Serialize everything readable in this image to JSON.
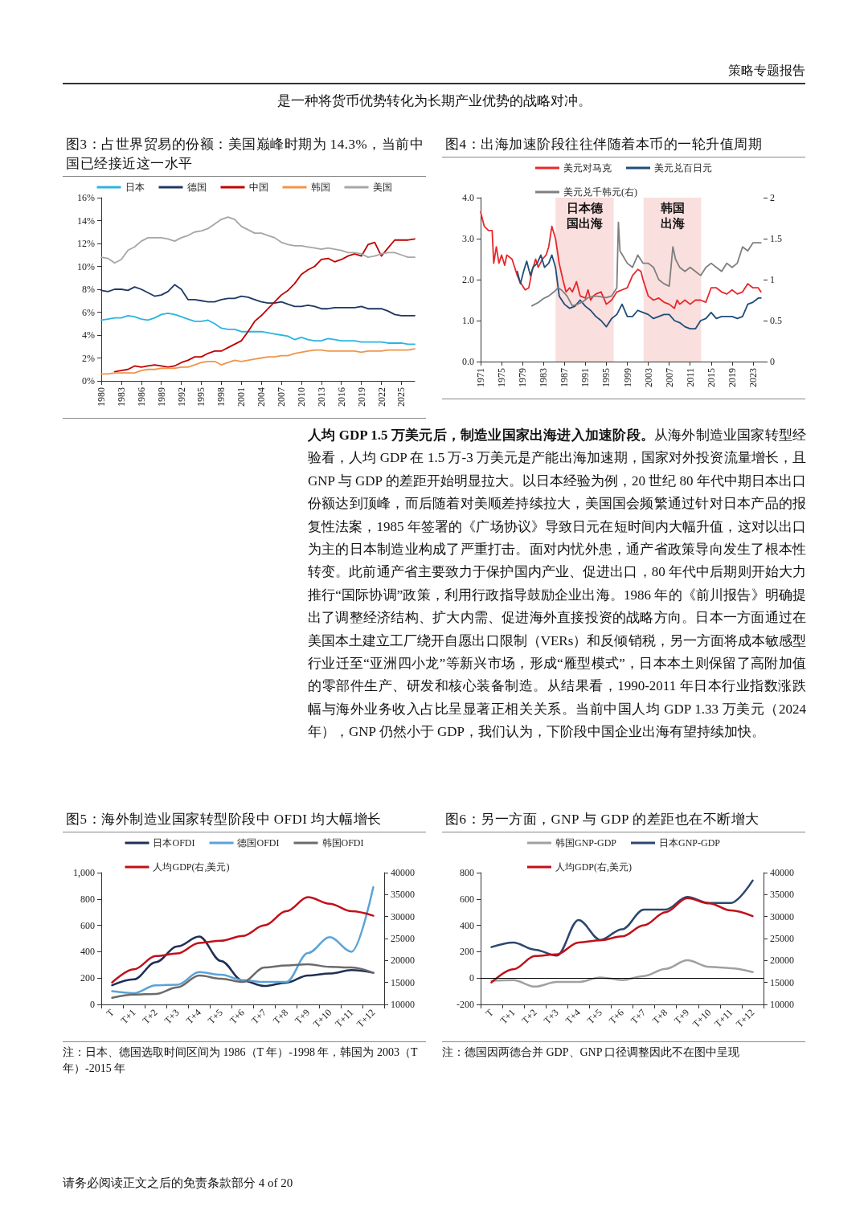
{
  "chart_data": [
    {
      "type": "line",
      "title": "图3：占世界贸易的份额：美国巅峰时期为 14.3%，当前中国已经接近这一水平",
      "x": [
        1980,
        1981,
        1982,
        1983,
        1984,
        1985,
        1986,
        1987,
        1988,
        1989,
        1990,
        1991,
        1992,
        1993,
        1994,
        1995,
        1996,
        1997,
        1998,
        1999,
        2000,
        2001,
        2002,
        2003,
        2004,
        2005,
        2006,
        2007,
        2008,
        2009,
        2010,
        2011,
        2012,
        2013,
        2014,
        2015,
        2016,
        2017,
        2018,
        2019,
        2020,
        2021,
        2022,
        2023,
        2024,
        2025,
        2026,
        2027
      ],
      "xlim": [
        1980,
        2027
      ],
      "xticks": [
        1980,
        1983,
        1986,
        1989,
        1992,
        1995,
        1998,
        2001,
        2004,
        2007,
        2010,
        2013,
        2016,
        2019,
        2022,
        2025
      ],
      "ylim": [
        0,
        16
      ],
      "yticks": [
        {
          "value": 0,
          "label": "0%"
        },
        {
          "value": 2,
          "label": "2%"
        },
        {
          "value": 4,
          "label": "4%"
        },
        {
          "value": 6,
          "label": "6%"
        },
        {
          "value": 8,
          "label": "8%"
        },
        {
          "value": 10,
          "label": "10%"
        },
        {
          "value": 12,
          "label": "12%"
        },
        {
          "value": 14,
          "label": "14%"
        },
        {
          "value": 16,
          "label": "16%"
        }
      ],
      "legend": "top",
      "annotations": [
        "策略专题报告",
        "是一种将货币优势转化为长期产业优势的战略对冲。"
      ],
      "series": [
        {
          "name": "日本",
          "color": "#2bb5e0",
          "values": [
            5.3,
            5.4,
            5.5,
            5.5,
            5.7,
            5.6,
            5.4,
            5.3,
            5.5,
            5.8,
            5.9,
            5.8,
            5.6,
            5.4,
            5.2,
            5.2,
            5.3,
            5.0,
            4.6,
            4.5,
            4.5,
            4.3,
            4.3,
            4.3,
            4.3,
            4.2,
            4.1,
            4.0,
            3.9,
            3.6,
            3.8,
            3.6,
            3.5,
            3.5,
            3.7,
            3.6,
            3.5,
            3.5,
            3.5,
            3.4,
            3.4,
            3.4,
            3.4,
            3.3,
            3.3,
            3.3,
            3.2,
            3.2
          ]
        },
        {
          "name": "德国",
          "color": "#1f3864",
          "values": [
            7.9,
            7.8,
            8.0,
            8.0,
            7.9,
            8.2,
            8.0,
            7.7,
            7.4,
            7.5,
            7.8,
            8.4,
            8.0,
            7.1,
            7.1,
            7.0,
            6.9,
            6.9,
            7.1,
            7.2,
            7.2,
            7.4,
            7.3,
            7.1,
            6.9,
            6.8,
            6.8,
            6.9,
            6.7,
            6.5,
            6.5,
            6.6,
            6.5,
            6.3,
            6.3,
            6.4,
            6.4,
            6.4,
            6.4,
            6.5,
            6.3,
            6.3,
            6.3,
            6.1,
            5.8,
            5.7,
            5.7,
            5.7
          ]
        },
        {
          "name": "中国",
          "color": "#c00000",
          "values": [
            null,
            null,
            0.8,
            0.9,
            1.0,
            1.3,
            1.2,
            1.3,
            1.4,
            1.3,
            1.2,
            1.3,
            1.6,
            1.8,
            2.1,
            2.1,
            2.4,
            2.6,
            2.6,
            2.9,
            3.2,
            3.5,
            4.3,
            5.2,
            5.7,
            6.3,
            6.9,
            7.5,
            7.9,
            8.5,
            9.3,
            9.7,
            10.0,
            10.6,
            10.7,
            10.4,
            10.6,
            10.9,
            11.1,
            10.9,
            11.9,
            12.1,
            10.9,
            11.6,
            12.3,
            12.3,
            12.3,
            12.4
          ]
        },
        {
          "name": "韩国",
          "color": "#f0954a",
          "values": [
            0.6,
            0.6,
            0.7,
            0.7,
            0.7,
            0.7,
            0.9,
            1.0,
            1.0,
            1.1,
            1.1,
            1.1,
            1.2,
            1.2,
            1.4,
            1.6,
            1.7,
            1.7,
            1.4,
            1.6,
            1.8,
            1.7,
            1.8,
            1.9,
            2.0,
            2.1,
            2.1,
            2.2,
            2.2,
            2.4,
            2.5,
            2.6,
            2.7,
            2.7,
            2.6,
            2.6,
            2.6,
            2.6,
            2.6,
            2.5,
            2.6,
            2.6,
            2.6,
            2.7,
            2.7,
            2.7,
            2.7,
            2.8
          ]
        },
        {
          "name": "美国",
          "color": "#a6a6a6",
          "values": [
            10.8,
            10.7,
            10.3,
            10.6,
            11.4,
            11.7,
            12.2,
            12.5,
            12.5,
            12.5,
            12.4,
            12.2,
            12.5,
            12.7,
            13.0,
            13.1,
            13.3,
            13.7,
            14.1,
            14.3,
            14.1,
            13.5,
            13.2,
            12.9,
            12.9,
            12.7,
            12.5,
            12.1,
            11.9,
            11.8,
            11.8,
            11.7,
            11.6,
            11.5,
            11.6,
            11.5,
            11.4,
            11.2,
            11.2,
            11.1,
            10.8,
            10.9,
            11.1,
            11.2,
            11.2,
            11.0,
            10.8,
            10.8
          ]
        }
      ]
    },
    {
      "type": "line",
      "title": "图4：出海加速阶段往往伴随着本币的一轮升值周期",
      "xlim": [
        1971,
        2025
      ],
      "xticks": [
        1971,
        1975,
        1979,
        1983,
        1987,
        1991,
        1995,
        1999,
        2003,
        2007,
        2011,
        2015,
        2019,
        2023
      ],
      "ylim": [
        0,
        4
      ],
      "yticks": [
        {
          "value": 0,
          "label": "0.0"
        },
        {
          "value": 1,
          "label": "1.0"
        },
        {
          "value": 2,
          "label": "2.0"
        },
        {
          "value": 3,
          "label": "3.0"
        },
        {
          "value": 4,
          "label": "4.0"
        }
      ],
      "y2lim": [
        0,
        2
      ],
      "y2ticks": [
        0,
        0.5,
        1,
        1.5,
        2
      ],
      "legend": "top",
      "bands": [
        {
          "axis": "x",
          "from": 1985.3,
          "to": 1996.4,
          "label": "日本德国出海",
          "color": "#f9dcdc"
        },
        {
          "axis": "x",
          "from": 2002.1,
          "to": 2013.1,
          "label": "韩国出海",
          "color": "#f9dcdc"
        }
      ],
      "annotations": [
        "人均 GDP 1.5 万美元后，制造业国家出海进入加速阶段。",
        "从海外制造业国家转型经验看，人均 GDP 在 1.5 万-3 万美元是产能出海加速期，国家对外投资流量增长，且 GNP 与 GDP 的差距开始明显拉大。以日本经验为例，20 世纪 80 年代中期日本出口份额达到顶峰，而后随着对美顺差持续拉大，美国国会频繁通过针对日本产品的报复性法案，1985 年签署的《广场协议》导致日元在短时间内大幅升值，这对以出口为主的日本制造业构成了严重打击。面对内忧外患，通产省政策导向发生了根本性转变。此前通产省主要致力于保护国内产业、促进出口，80 年代中后期则开始大力推行“国际协调”政策，利用行政指导鼓励企业出海。1986 年的《前川报告》明确提出了调整经济结构、扩大内需、促进海外直接投资的战略方向。日本一方面通过在美国本土建立工厂绕开自愿出口限制（VERs）和反倾销税，另一方面将成本敏感型行业迁至“亚洲四小龙”等新兴市场，形成“雁型模式”，日本本土则保留了高附加值的零部件生产、研发和核心装备制造。从结果看，1990-2011 年日本行业指数涨跌幅与海外业务收入占比呈显著正相关关系。当前中国人均 GDP 1.33 万美元（2024 年），GNP 仍然小于 GDP，我们认为，下阶段中国企业出海有望持续加快。"
      ],
      "series": [
        {
          "name": "美元对马克",
          "color": "#e8282b",
          "x": [
            1971,
            1971.7,
            1972.5,
            1973.2,
            1973.5,
            1974,
            1974.5,
            1975,
            1975.6,
            1976,
            1977,
            1978,
            1978.5,
            1979.5,
            1980.2,
            1980.8,
            1981.5,
            1982,
            1982.8,
            1983.5,
            1984,
            1984.6,
            1985.3,
            1986,
            1986.7,
            1987.3,
            1988,
            1988.5,
            1989.3,
            1990,
            1991,
            1991.5,
            1992,
            1992.5,
            1993,
            1994,
            1995,
            1996,
            1997,
            1998,
            1999,
            2000,
            2001,
            2001.6,
            2002,
            2003,
            2004,
            2005,
            2006,
            2007,
            2008,
            2008.5,
            2009,
            2010,
            2011,
            2012,
            2013,
            2014,
            2015,
            2016,
            2017,
            2018,
            2019,
            2020,
            2021,
            2022,
            2023,
            2024,
            2024.5
          ],
          "values": [
            3.65,
            3.3,
            3.2,
            3.2,
            2.4,
            2.8,
            2.4,
            2.6,
            2.35,
            2.6,
            2.5,
            2.1,
            1.95,
            1.75,
            1.8,
            2.2,
            2.5,
            2.3,
            2.5,
            2.6,
            2.8,
            3.3,
            3.0,
            2.4,
            2.0,
            1.7,
            1.8,
            1.7,
            1.95,
            1.6,
            1.55,
            1.75,
            1.5,
            1.6,
            1.65,
            1.7,
            1.4,
            1.5,
            1.7,
            1.75,
            1.8,
            2.1,
            2.25,
            2.2,
            2.0,
            1.6,
            1.5,
            1.55,
            1.45,
            1.4,
            1.3,
            1.5,
            1.4,
            1.5,
            1.4,
            1.5,
            1.5,
            1.45,
            1.8,
            1.8,
            1.7,
            1.65,
            1.75,
            1.65,
            1.7,
            1.9,
            1.8,
            1.8,
            1.7
          ]
        },
        {
          "name": "美元兑百日元",
          "color": "#1f4e79",
          "x": [
            1978,
            1978.6,
            1979.2,
            1979.8,
            1980.5,
            1981,
            1981.8,
            1982.5,
            1983.2,
            1984,
            1984.6,
            1985.3,
            1986,
            1987,
            1988,
            1989,
            1990,
            1991,
            1992,
            1993,
            1994,
            1995,
            1996,
            1997,
            1998,
            1999,
            2000,
            2001,
            2002,
            2003,
            2004,
            2005,
            2006,
            2007,
            2008,
            2009,
            2010,
            2011,
            2012,
            2013,
            2014,
            2015,
            2016,
            2017,
            2018,
            2019,
            2020,
            2021,
            2022,
            2023,
            2024,
            2024.5
          ],
          "values": [
            2.2,
            1.9,
            2.2,
            2.45,
            2.1,
            2.3,
            2.4,
            2.6,
            2.3,
            2.4,
            2.6,
            2.3,
            1.6,
            1.4,
            1.3,
            1.35,
            1.5,
            1.35,
            1.25,
            1.1,
            1.0,
            0.85,
            1.05,
            1.15,
            1.4,
            1.1,
            1.1,
            1.25,
            1.2,
            1.15,
            1.05,
            1.1,
            1.15,
            1.15,
            1.0,
            0.95,
            0.85,
            0.8,
            0.8,
            1.0,
            1.05,
            1.2,
            1.05,
            1.1,
            1.1,
            1.1,
            1.05,
            1.1,
            1.4,
            1.45,
            1.55,
            1.55
          ]
        },
        {
          "name": "美元兑千韩元(右)",
          "color": "#7f7f7f",
          "axis": "y2",
          "x": [
            1980.8,
            1982,
            1983,
            1984,
            1985,
            1985.8,
            1986.5,
            1987.5,
            1988.5,
            1989.5,
            1990.5,
            1991.5,
            1993,
            1995,
            1996,
            1997,
            1997.3,
            1997.6,
            1999,
            2000,
            2001,
            2002,
            2003,
            2004,
            2005,
            2006,
            2007,
            2007.7,
            2008.2,
            2009,
            2010,
            2011,
            2012,
            2013,
            2014,
            2015,
            2016,
            2017,
            2018,
            2019,
            2020,
            2021,
            2022,
            2023,
            2024,
            2024.5
          ],
          "values": [
            0.68,
            0.72,
            0.77,
            0.8,
            0.85,
            0.9,
            0.87,
            0.8,
            0.68,
            0.7,
            0.73,
            0.78,
            0.8,
            0.78,
            0.8,
            0.9,
            1.7,
            1.35,
            1.2,
            1.15,
            1.3,
            1.2,
            1.2,
            1.15,
            1.0,
            0.95,
            0.92,
            1.4,
            1.25,
            1.15,
            1.1,
            1.15,
            1.1,
            1.05,
            1.15,
            1.2,
            1.15,
            1.1,
            1.2,
            1.15,
            1.2,
            1.4,
            1.35,
            1.45,
            1.45,
            1.45
          ]
        }
      ]
    },
    {
      "type": "line",
      "title": "图5：海外制造业国家转型阶段中 OFDI 均大幅增长",
      "categories": [
        "T",
        "T+1",
        "T+2",
        "T+3",
        "T+4",
        "T+5",
        "T+6",
        "T+7",
        "T+8",
        "T+9",
        "T+10",
        "T+11",
        "T+12"
      ],
      "ylim": [
        0,
        1000
      ],
      "yticks": [
        0,
        200,
        400,
        600,
        800,
        {
          "value": 1000,
          "label": "1,000"
        }
      ],
      "y2lim": [
        10000,
        40000
      ],
      "y2ticks": [
        10000,
        15000,
        20000,
        25000,
        30000,
        35000,
        40000
      ],
      "legend": "top",
      "annotations": [
        "注：日本、德国选取时间区间为 1986（T 年）-1998 年，韩国为 2003（T 年）-2015 年"
      ],
      "series": [
        {
          "name": "日本OFDI",
          "color": "#1f2f55",
          "values": [
            145,
            190,
            320,
            440,
            515,
            330,
            180,
            140,
            165,
            220,
            235,
            260,
            240
          ]
        },
        {
          "name": "德国OFDI",
          "color": "#5ba3d6",
          "values": [
            100,
            85,
            145,
            150,
            245,
            225,
            185,
            170,
            170,
            390,
            510,
            400,
            890
          ]
        },
        {
          "name": "韩国OFDI",
          "color": "#6b6b6b",
          "values": [
            50,
            75,
            80,
            130,
            220,
            195,
            170,
            280,
            295,
            305,
            285,
            280,
            240
          ]
        },
        {
          "name": "人均GDP(右,美元)",
          "color": "#c0101a",
          "axis": "y2",
          "values": [
            15000,
            18000,
            21000,
            21600,
            24000,
            24500,
            25600,
            28000,
            31200,
            34400,
            32900,
            31200,
            30200
          ]
        }
      ]
    },
    {
      "type": "line",
      "title": "图6：另一方面，GNP 与 GDP 的差距也在不断增大",
      "categories": [
        "T",
        "T+1",
        "T+2",
        "T+3",
        "T+4",
        "T+5",
        "T+6",
        "T+7",
        "T+8",
        "T+9",
        "T+10",
        "T+11",
        "T+12"
      ],
      "ylim": [
        -200,
        800
      ],
      "yticks": [
        -200,
        0,
        200,
        400,
        600,
        800
      ],
      "y2lim": [
        10000,
        40000
      ],
      "y2ticks": [
        10000,
        15000,
        20000,
        25000,
        30000,
        35000,
        40000
      ],
      "legend": "top",
      "ref_lines": [
        {
          "axis": "y",
          "value": 0,
          "color": "#000000"
        }
      ],
      "annotations": [
        "注：德国因两德合并 GDP、GNP 口径调整因此不在图中呈现",
        "请务必阅读正文之后的免责条款部分 4 of 20"
      ],
      "series": [
        {
          "name": "韩国GNP-GDP",
          "color": "#a0a0a0",
          "values": [
            -20,
            -15,
            -65,
            -30,
            -30,
            5,
            -15,
            15,
            70,
            135,
            85,
            75,
            45
          ]
        },
        {
          "name": "日本GNP-GDP",
          "color": "#2c4770",
          "values": [
            235,
            270,
            215,
            170,
            440,
            290,
            370,
            520,
            520,
            615,
            570,
            570,
            740
          ]
        },
        {
          "name": "人均GDP(右,美元)",
          "color": "#c0101a",
          "axis": "y2",
          "values": [
            15000,
            18000,
            21000,
            21400,
            24100,
            24600,
            25500,
            28000,
            31000,
            34200,
            33000,
            31400,
            30100
          ]
        }
      ]
    }
  ]
}
